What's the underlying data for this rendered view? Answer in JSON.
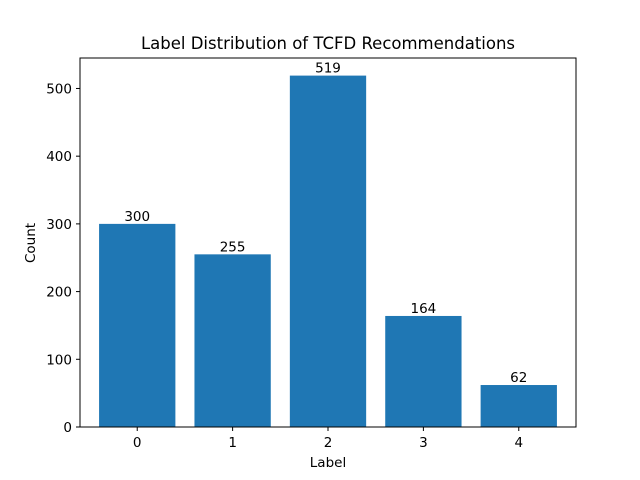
{
  "chart_data": {
    "type": "bar",
    "title": "Label Distribution of TCFD Recommendations",
    "xlabel": "Label",
    "ylabel": "Count",
    "categories": [
      "0",
      "1",
      "2",
      "3",
      "4"
    ],
    "values": [
      300,
      255,
      519,
      164,
      62
    ],
    "data_labels": [
      "300",
      "255",
      "519",
      "164",
      "62"
    ],
    "ylim": [
      0,
      545
    ],
    "yticks": [
      0,
      100,
      200,
      300,
      400,
      500
    ],
    "ytick_labels": [
      "0",
      "100",
      "200",
      "300",
      "400",
      "500"
    ],
    "grid": false,
    "legend": "none",
    "bar_color": "#1f77b4"
  }
}
